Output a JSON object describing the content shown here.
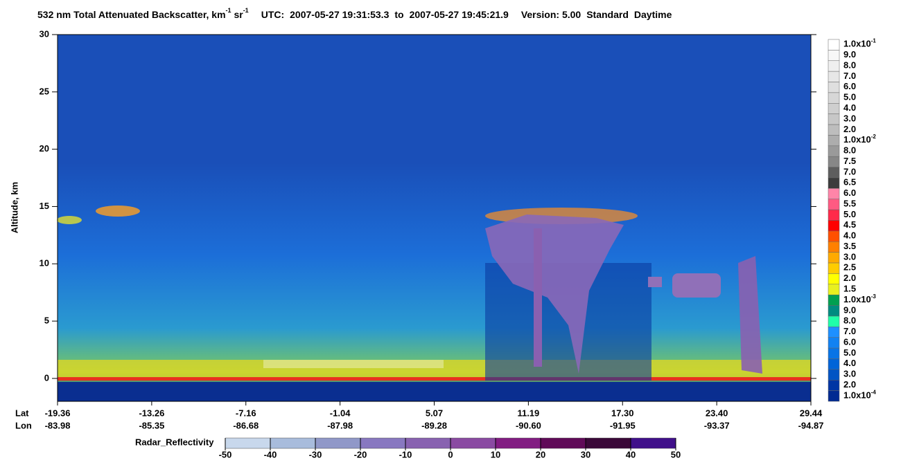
{
  "chart_data": {
    "type": "heatmap",
    "title": {
      "main": "532 nm Total Attenuated Backscatter, km",
      "sup1": "-1",
      "unit2": " sr",
      "sup2": "-1",
      "utc_label": "UTC:",
      "start": "2007-05-27 19:31:53.3",
      "to": "to",
      "end": "2007-05-27 19:45:21.9",
      "version": "Version: 5.00",
      "mode": "Standard",
      "daylight": "Daytime"
    },
    "ylabel": "Altitude, km",
    "ylim": [
      -2,
      30
    ],
    "yticks": [
      0,
      5,
      10,
      15,
      20,
      25,
      30
    ],
    "lat_label": "Lat",
    "lon_label": "Lon",
    "lat": [
      "-19.36",
      "-13.26",
      "-7.16",
      "-1.04",
      "5.07",
      "11.19",
      "17.30",
      "23.40",
      "29.44"
    ],
    "lon": [
      "-83.98",
      "-85.35",
      "-86.68",
      "-87.98",
      "-89.28",
      "-90.60",
      "-91.95",
      "-93.37",
      "-94.87"
    ],
    "colorbar": [
      {
        "label": "1.0x10",
        "exp": "-1",
        "color": "#ffffff"
      },
      {
        "label": "9.0",
        "color": "#f7f7f7"
      },
      {
        "label": "8.0",
        "color": "#efefef"
      },
      {
        "label": "7.0",
        "color": "#e7e7e7"
      },
      {
        "label": "6.0",
        "color": "#dfdfdf"
      },
      {
        "label": "5.0",
        "color": "#d7d7d7"
      },
      {
        "label": "4.0",
        "color": "#cfcfcf"
      },
      {
        "label": "3.0",
        "color": "#c7c7c7"
      },
      {
        "label": "2.0",
        "color": "#bdbdbd"
      },
      {
        "label": "1.0x10",
        "exp": "-2",
        "color": "#adadad"
      },
      {
        "label": "8.0",
        "color": "#9a9a9a"
      },
      {
        "label": "7.5",
        "color": "#878787"
      },
      {
        "label": "7.0",
        "color": "#5e5e5e"
      },
      {
        "label": "6.5",
        "color": "#3c3c3c"
      },
      {
        "label": "6.0",
        "color": "#ff85a8"
      },
      {
        "label": "5.5",
        "color": "#ff5a82"
      },
      {
        "label": "5.0",
        "color": "#ff2a4a"
      },
      {
        "label": "4.5",
        "color": "#ff0000"
      },
      {
        "label": "4.0",
        "color": "#ff5000"
      },
      {
        "label": "3.5",
        "color": "#ff8000"
      },
      {
        "label": "3.0",
        "color": "#ffaa00"
      },
      {
        "label": "2.5",
        "color": "#ffcc00"
      },
      {
        "label": "2.0",
        "color": "#ffff00"
      },
      {
        "label": "1.5",
        "color": "#e8f020"
      },
      {
        "label": "1.0x10",
        "exp": "-3",
        "color": "#00a050"
      },
      {
        "label": "9.0",
        "color": "#008c80"
      },
      {
        "label": "8.0",
        "color": "#20ffa8"
      },
      {
        "label": "7.0",
        "color": "#1e90ff"
      },
      {
        "label": "6.0",
        "color": "#1282f2"
      },
      {
        "label": "5.0",
        "color": "#0874e6"
      },
      {
        "label": "4.0",
        "color": "#0064d8"
      },
      {
        "label": "3.0",
        "color": "#0054c4"
      },
      {
        "label": "2.0",
        "color": "#0036a4"
      },
      {
        "label": "1.0x10",
        "exp": "-4",
        "color": "#002a92"
      }
    ],
    "radar": {
      "label": "Radar_Reflectivity",
      "ticks": [
        -50,
        -40,
        -30,
        -20,
        -10,
        0,
        10,
        20,
        30,
        40,
        50
      ],
      "colors": [
        "#c8d8ec",
        "#a8bcdc",
        "#9098c8",
        "#8878c0",
        "#8862b0",
        "#8a4aa2",
        "#821c82",
        "#600a58",
        "#3a0838",
        "#40108a"
      ]
    }
  }
}
